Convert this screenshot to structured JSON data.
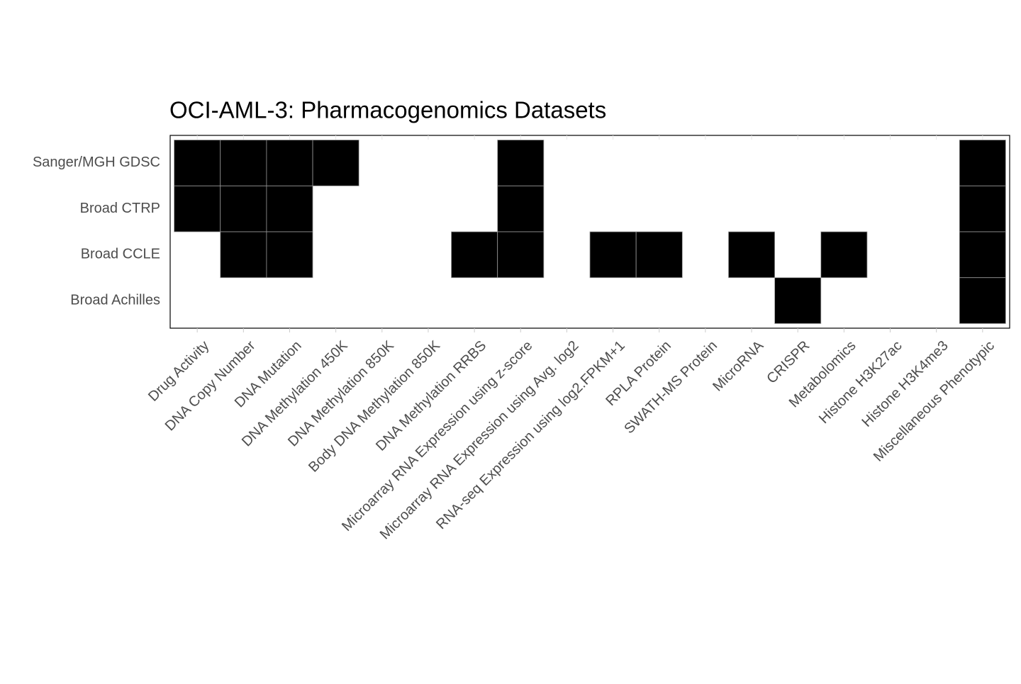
{
  "chart_data": {
    "type": "heatmap",
    "title": "OCI-AML-3: Pharmacogenomics Datasets",
    "x_categories": [
      "Drug Activity",
      "DNA Copy Number",
      "DNA Mutation",
      "DNA Methylation 450K",
      "DNA Methylation 850K",
      "Body DNA Methylation 850K",
      "DNA Methylation RRBS",
      "Microarray RNA Expression using z-score",
      "Microarray RNA Expression using Avg. log2",
      "RNA-seq Expression using log2.FPKM+1",
      "RPLA Protein",
      "SWATH-MS Protein",
      "MicroRNA",
      "CRISPR",
      "Metabolomics",
      "Histone H3K27ac",
      "Histone H3K4me3",
      "Miscellaneous Phenotypic"
    ],
    "y_categories": [
      "Sanger/MGH GDSC",
      "Broad CTRP",
      "Broad CCLE",
      "Broad Achilles"
    ],
    "values": [
      [
        1,
        1,
        1,
        1,
        0,
        0,
        0,
        1,
        0,
        0,
        0,
        0,
        0,
        0,
        0,
        0,
        0,
        1
      ],
      [
        1,
        1,
        1,
        0,
        0,
        0,
        0,
        1,
        0,
        0,
        0,
        0,
        0,
        0,
        0,
        0,
        0,
        1
      ],
      [
        0,
        1,
        1,
        0,
        0,
        0,
        1,
        1,
        0,
        1,
        1,
        0,
        1,
        0,
        1,
        0,
        0,
        1
      ],
      [
        0,
        0,
        0,
        0,
        0,
        0,
        0,
        0,
        0,
        0,
        0,
        0,
        0,
        1,
        0,
        0,
        0,
        1
      ]
    ],
    "color": "#000000"
  }
}
